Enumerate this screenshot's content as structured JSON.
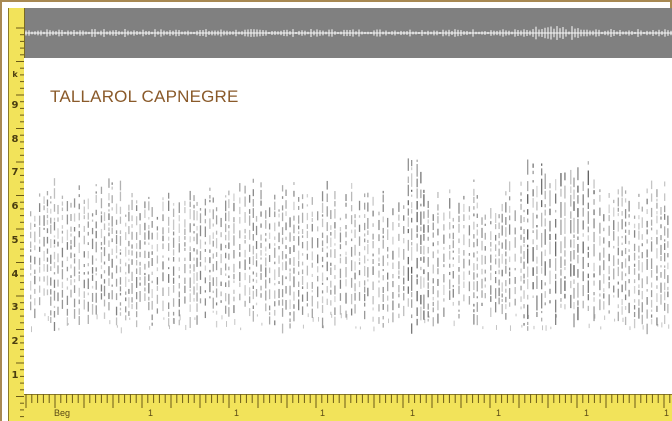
{
  "title": "TALLAROL CAPNEGRE",
  "frequency_axis": {
    "unit_label": "k",
    "ticks": [
      "1",
      "2",
      "3",
      "4",
      "5",
      "6",
      "7",
      "8",
      "9"
    ]
  },
  "time_axis": {
    "first_label": "Beg",
    "ticks": [
      "1",
      "1",
      "1",
      "1",
      "1",
      "1",
      "1"
    ]
  },
  "colors": {
    "waveform_background": "#808080",
    "waveform_signal": "#ffffff",
    "ruler": "#f2e35a",
    "frame": "#a88952",
    "title": "#8a5a2a",
    "spectrogram_marks": "#555555"
  }
}
